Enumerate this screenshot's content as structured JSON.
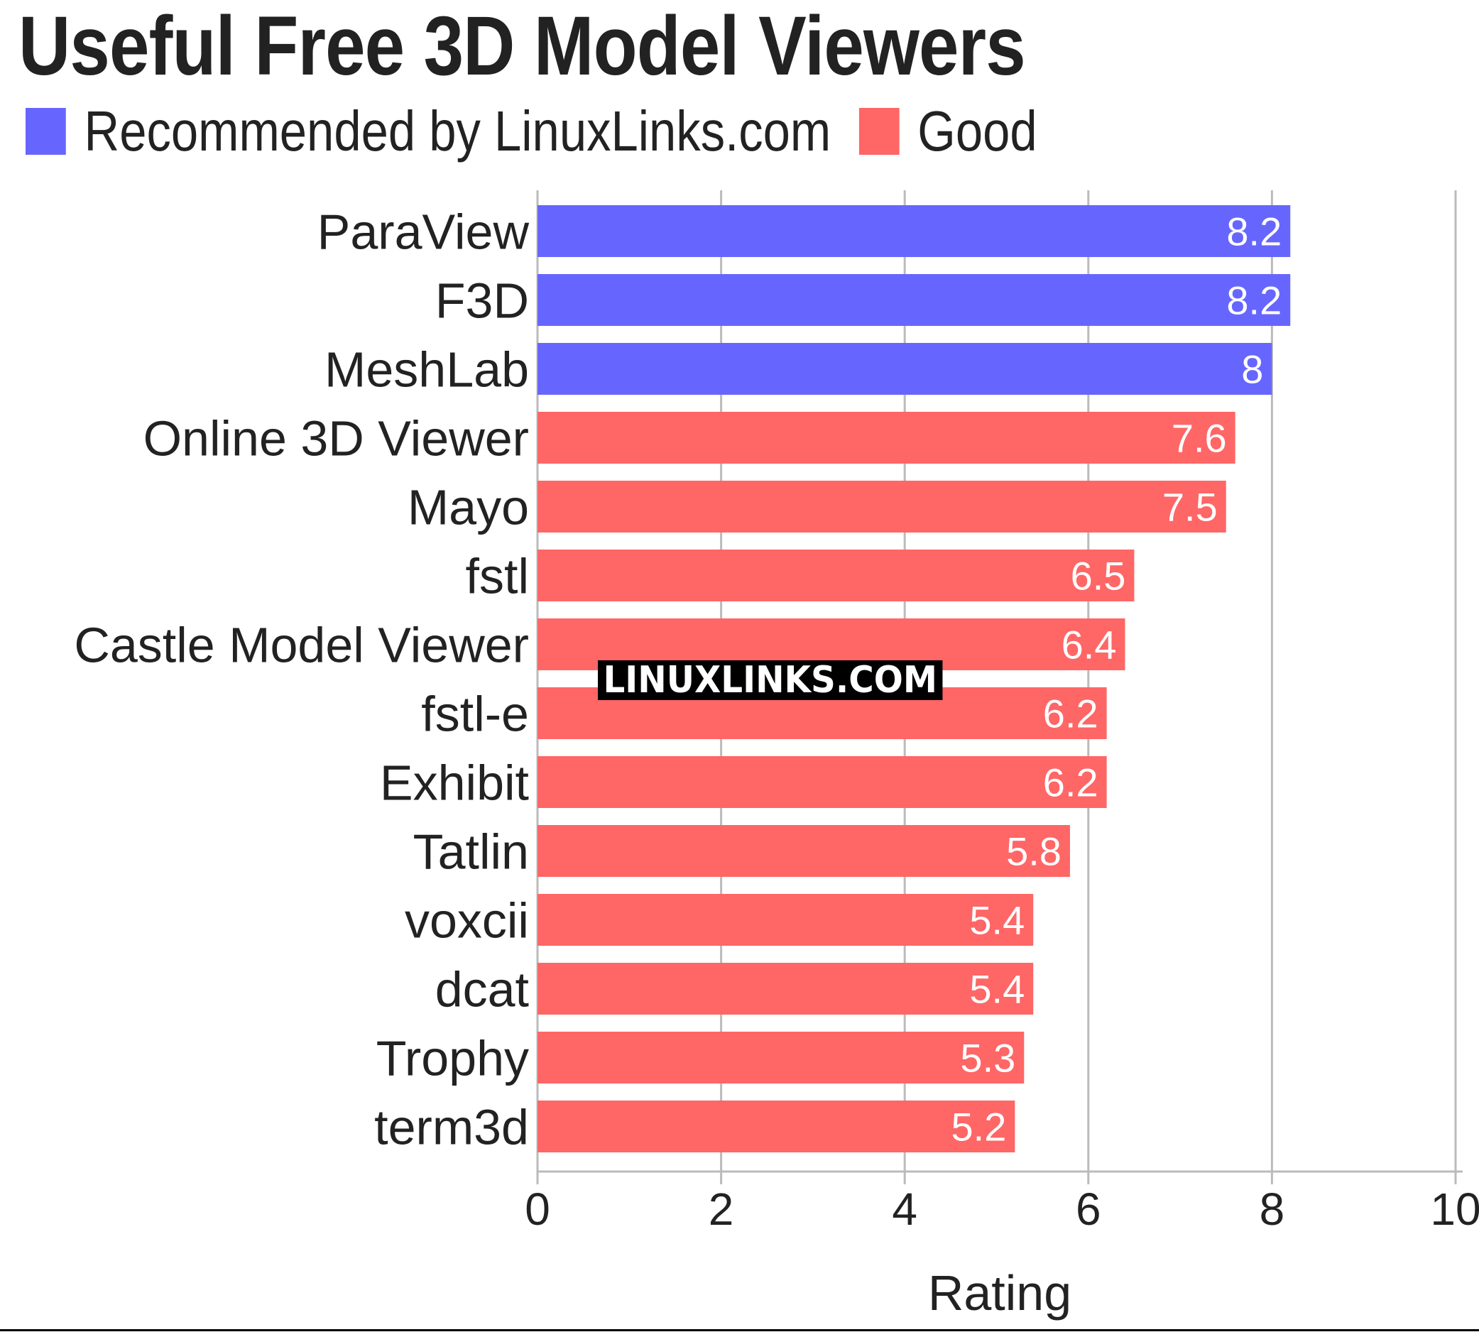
{
  "chart_data": {
    "type": "bar",
    "orientation": "horizontal",
    "title": "Useful Free 3D Model Viewers",
    "legend": [
      {
        "label": "Recommended by LinuxLinks.com",
        "color": "#6666ff"
      },
      {
        "label": "Good",
        "color": "#ff6666"
      }
    ],
    "legend_position": "top-left",
    "categories": [
      "ParaView",
      "F3D",
      "MeshLab",
      "Online 3D Viewer",
      "Mayo",
      "fstl",
      "Castle Model Viewer",
      "fstl-e",
      "Exhibit",
      "Tatlin",
      "voxcii",
      "dcat",
      "Trophy",
      "term3d"
    ],
    "values": [
      8.2,
      8.2,
      8,
      7.6,
      7.5,
      6.5,
      6.4,
      6.2,
      6.2,
      5.8,
      5.4,
      5.4,
      5.3,
      5.2
    ],
    "value_labels": [
      "8.2",
      "8.2",
      "8",
      "7.6",
      "7.5",
      "6.5",
      "6.4",
      "6.2",
      "6.2",
      "5.8",
      "5.4",
      "5.4",
      "5.3",
      "5.2"
    ],
    "groups": [
      "Recommended by LinuxLinks.com",
      "Recommended by LinuxLinks.com",
      "Recommended by LinuxLinks.com",
      "Good",
      "Good",
      "Good",
      "Good",
      "Good",
      "Good",
      "Good",
      "Good",
      "Good",
      "Good",
      "Good"
    ],
    "xlabel": "Rating",
    "ylabel": "",
    "xlim": [
      0,
      10
    ],
    "xticks": [
      0,
      2,
      4,
      6,
      8,
      10
    ],
    "grid": "vertical"
  },
  "watermark": "LINUXLINKS.COM",
  "colors": {
    "recommended": "#6666ff",
    "good": "#ff6666",
    "grid": "#bbbbbb",
    "text": "#222222"
  }
}
